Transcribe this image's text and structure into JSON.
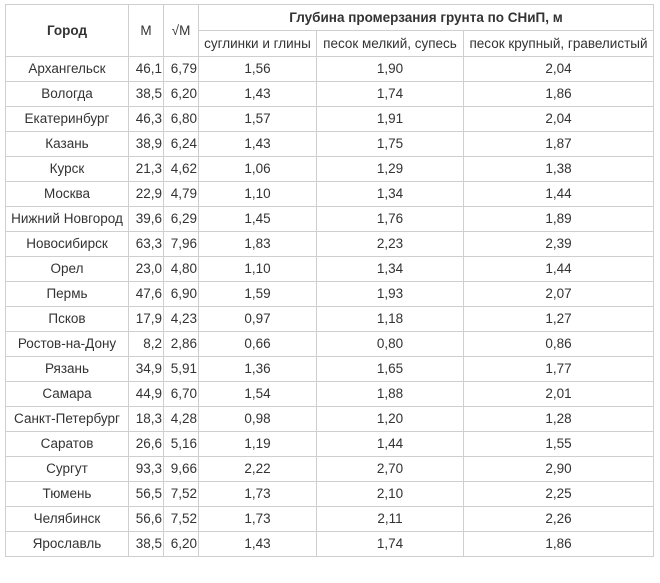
{
  "table": {
    "headers": {
      "city": "Город",
      "m": "М",
      "sqrt_m": "√М",
      "group": "Глубина промерзания грунта по СНиП, м",
      "soil_types": [
        "суглинки и глины",
        "песок мелкий, супесь",
        "песок крупный, гравелистый"
      ]
    },
    "rows": [
      {
        "city": "Архангельск",
        "m": "46,1",
        "sqrt": "6,79",
        "v1": "1,56",
        "v2": "1,90",
        "v3": "2,04"
      },
      {
        "city": "Вологда",
        "m": "38,5",
        "sqrt": "6,20",
        "v1": "1,43",
        "v2": "1,74",
        "v3": "1,86"
      },
      {
        "city": "Екатеринбург",
        "m": "46,3",
        "sqrt": "6,80",
        "v1": "1,57",
        "v2": "1,91",
        "v3": "2,04"
      },
      {
        "city": "Казань",
        "m": "38,9",
        "sqrt": "6,24",
        "v1": "1,43",
        "v2": "1,75",
        "v3": "1,87"
      },
      {
        "city": "Курск",
        "m": "21,3",
        "sqrt": "4,62",
        "v1": "1,06",
        "v2": "1,29",
        "v3": "1,38"
      },
      {
        "city": "Москва",
        "m": "22,9",
        "sqrt": "4,79",
        "v1": "1,10",
        "v2": "1,34",
        "v3": "1,44"
      },
      {
        "city": "Нижний Новгород",
        "m": "39,6",
        "sqrt": "6,29",
        "v1": "1,45",
        "v2": "1,76",
        "v3": "1,89"
      },
      {
        "city": "Новосибирск",
        "m": "63,3",
        "sqrt": "7,96",
        "v1": "1,83",
        "v2": "2,23",
        "v3": "2,39"
      },
      {
        "city": "Орел",
        "m": "23,0",
        "sqrt": "4,80",
        "v1": "1,10",
        "v2": "1,34",
        "v3": "1,44"
      },
      {
        "city": "Пермь",
        "m": "47,6",
        "sqrt": "6,90",
        "v1": "1,59",
        "v2": "1,93",
        "v3": "2,07"
      },
      {
        "city": "Псков",
        "m": "17,9",
        "sqrt": "4,23",
        "v1": "0,97",
        "v2": "1,18",
        "v3": "1,27"
      },
      {
        "city": "Ростов-на-Дону",
        "m": "8,2",
        "sqrt": "2,86",
        "v1": "0,66",
        "v2": "0,80",
        "v3": "0,86"
      },
      {
        "city": "Рязань",
        "m": "34,9",
        "sqrt": "5,91",
        "v1": "1,36",
        "v2": "1,65",
        "v3": "1,77"
      },
      {
        "city": "Самара",
        "m": "44,9",
        "sqrt": "6,70",
        "v1": "1,54",
        "v2": "1,88",
        "v3": "2,01"
      },
      {
        "city": "Санкт-Петербург",
        "m": "18,3",
        "sqrt": "4,28",
        "v1": "0,98",
        "v2": "1,20",
        "v3": "1,28"
      },
      {
        "city": "Саратов",
        "m": "26,6",
        "sqrt": "5,16",
        "v1": "1,19",
        "v2": "1,44",
        "v3": "1,55"
      },
      {
        "city": "Сургут",
        "m": "93,3",
        "sqrt": "9,66",
        "v1": "2,22",
        "v2": "2,70",
        "v3": "2,90"
      },
      {
        "city": "Тюмень",
        "m": "56,5",
        "sqrt": "7,52",
        "v1": "1,73",
        "v2": "2,10",
        "v3": "2,25"
      },
      {
        "city": "Челябинск",
        "m": "56,6",
        "sqrt": "7,52",
        "v1": "1,73",
        "v2": "2,11",
        "v3": "2,26"
      },
      {
        "city": "Ярославль",
        "m": "38,5",
        "sqrt": "6,20",
        "v1": "1,43",
        "v2": "1,74",
        "v3": "1,86"
      }
    ]
  }
}
